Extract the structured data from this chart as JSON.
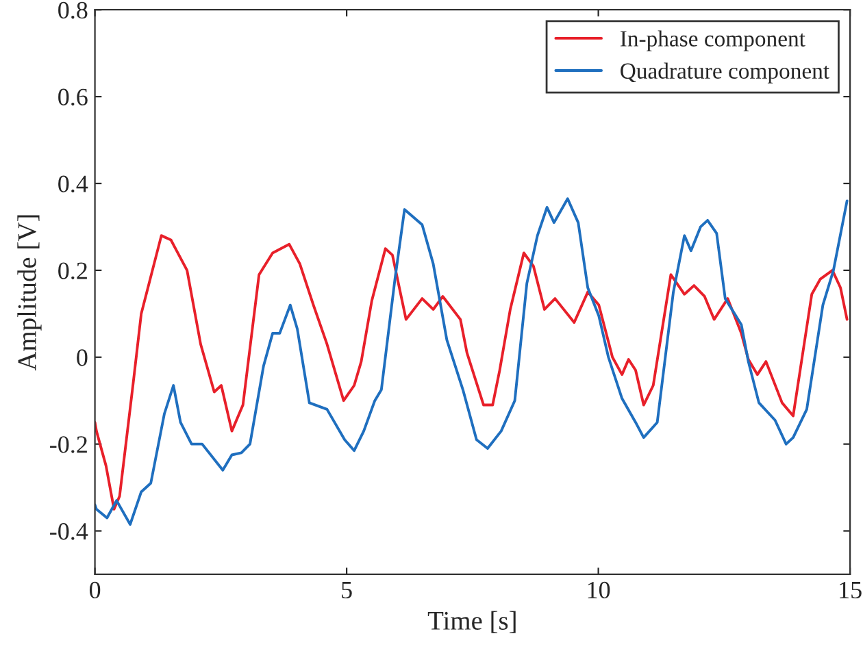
{
  "chart_data": {
    "type": "line",
    "xlabel": "Time [s]",
    "ylabel": "Amplitude [V]",
    "xlim": [
      0,
      15
    ],
    "ylim": [
      -0.5,
      0.8
    ],
    "xticks": [
      0,
      5,
      10,
      15
    ],
    "yticks": [
      -0.4,
      -0.2,
      0,
      0.2,
      0.4,
      0.6,
      0.8
    ],
    "grid": false,
    "legend": "top right",
    "line_style": "solid",
    "marker": "none",
    "series": [
      {
        "name": "In-phase component",
        "color": "#e8202a",
        "x": [
          0.0,
          0.03,
          0.22,
          0.38,
          0.49,
          0.76,
          0.92,
          1.32,
          1.51,
          1.83,
          2.1,
          2.37,
          2.51,
          2.72,
          2.94,
          3.26,
          3.53,
          3.86,
          4.07,
          4.34,
          4.61,
          4.94,
          5.15,
          5.29,
          5.5,
          5.77,
          5.91,
          6.18,
          6.5,
          6.72,
          6.91,
          7.26,
          7.39,
          7.72,
          7.9,
          8.04,
          8.25,
          8.52,
          8.71,
          8.93,
          9.14,
          9.52,
          9.79,
          10.01,
          10.28,
          10.47,
          10.6,
          10.74,
          10.9,
          11.09,
          11.44,
          11.71,
          11.9,
          12.11,
          12.3,
          12.57,
          12.84,
          12.98,
          13.16,
          13.33,
          13.65,
          13.87,
          14.24,
          14.41,
          14.65,
          14.81,
          14.94
        ],
        "values": [
          -0.15,
          -0.17,
          -0.25,
          -0.35,
          -0.32,
          -0.06,
          0.1,
          0.28,
          0.27,
          0.2,
          0.03,
          -0.08,
          -0.065,
          -0.17,
          -0.11,
          0.19,
          0.24,
          0.26,
          0.215,
          0.12,
          0.03,
          -0.1,
          -0.065,
          -0.01,
          0.13,
          0.25,
          0.235,
          0.087,
          0.135,
          0.11,
          0.14,
          0.087,
          0.01,
          -0.11,
          -0.11,
          -0.03,
          0.11,
          0.24,
          0.21,
          0.11,
          0.135,
          0.08,
          0.15,
          0.12,
          0.0,
          -0.04,
          -0.005,
          -0.03,
          -0.11,
          -0.065,
          0.19,
          0.145,
          0.165,
          0.14,
          0.087,
          0.135,
          0.055,
          -0.005,
          -0.04,
          -0.01,
          -0.105,
          -0.135,
          0.145,
          0.18,
          0.2,
          0.16,
          0.087
        ]
      },
      {
        "name": "Quadrature component",
        "color": "#1f6fbf",
        "x": [
          0.0,
          0.03,
          0.24,
          0.43,
          0.7,
          0.92,
          1.11,
          1.38,
          1.56,
          1.7,
          1.92,
          2.13,
          2.54,
          2.72,
          2.91,
          3.08,
          3.35,
          3.53,
          3.67,
          3.88,
          4.02,
          4.26,
          4.61,
          4.96,
          5.15,
          5.34,
          5.56,
          5.69,
          5.96,
          6.15,
          6.5,
          6.72,
          6.99,
          7.31,
          7.58,
          7.8,
          8.07,
          8.34,
          8.58,
          8.79,
          8.98,
          9.12,
          9.39,
          9.6,
          9.79,
          10.01,
          10.2,
          10.47,
          10.74,
          10.9,
          11.17,
          11.49,
          11.71,
          11.84,
          12.03,
          12.17,
          12.35,
          12.52,
          12.84,
          12.98,
          13.19,
          13.51,
          13.73,
          13.87,
          14.14,
          14.46,
          14.67,
          14.94
        ],
        "values": [
          -0.34,
          -0.35,
          -0.37,
          -0.33,
          -0.385,
          -0.31,
          -0.29,
          -0.13,
          -0.065,
          -0.15,
          -0.2,
          -0.2,
          -0.26,
          -0.225,
          -0.22,
          -0.2,
          -0.02,
          0.055,
          0.055,
          0.12,
          0.065,
          -0.105,
          -0.12,
          -0.19,
          -0.215,
          -0.17,
          -0.1,
          -0.075,
          0.18,
          0.34,
          0.305,
          0.215,
          0.04,
          -0.075,
          -0.19,
          -0.21,
          -0.17,
          -0.1,
          0.17,
          0.28,
          0.345,
          0.31,
          0.365,
          0.31,
          0.16,
          0.095,
          0.0,
          -0.095,
          -0.15,
          -0.185,
          -0.15,
          0.15,
          0.28,
          0.245,
          0.3,
          0.315,
          0.285,
          0.135,
          0.075,
          -0.01,
          -0.105,
          -0.145,
          -0.2,
          -0.185,
          -0.12,
          0.12,
          0.2,
          0.36
        ]
      }
    ]
  }
}
